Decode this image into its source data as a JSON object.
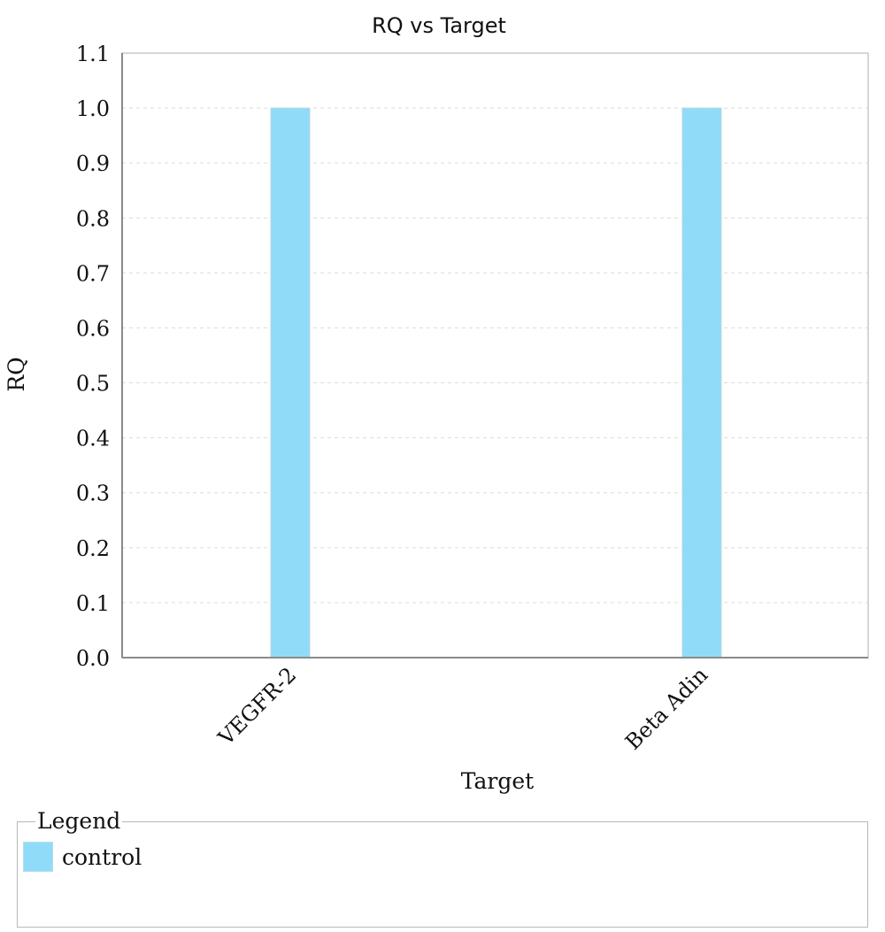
{
  "chart_data": {
    "type": "bar",
    "title": "RQ vs Target",
    "xlabel": "Target",
    "ylabel": "RQ",
    "categories": [
      "VEGFR-2",
      "Beta Adin"
    ],
    "series": [
      {
        "name": "control",
        "values": [
          1.0,
          1.0
        ],
        "color": "#90dcf8"
      }
    ],
    "ylim": [
      0.0,
      1.1
    ],
    "yticks": [
      "0.0",
      "0.1",
      "0.2",
      "0.3",
      "0.4",
      "0.5",
      "0.6",
      "0.7",
      "0.8",
      "0.9",
      "1.0",
      "1.1"
    ],
    "grid": true,
    "legend_placement": "bottom"
  },
  "legend": {
    "title": "Legend",
    "items": [
      {
        "label": "control",
        "color": "#90dcf8"
      }
    ]
  }
}
